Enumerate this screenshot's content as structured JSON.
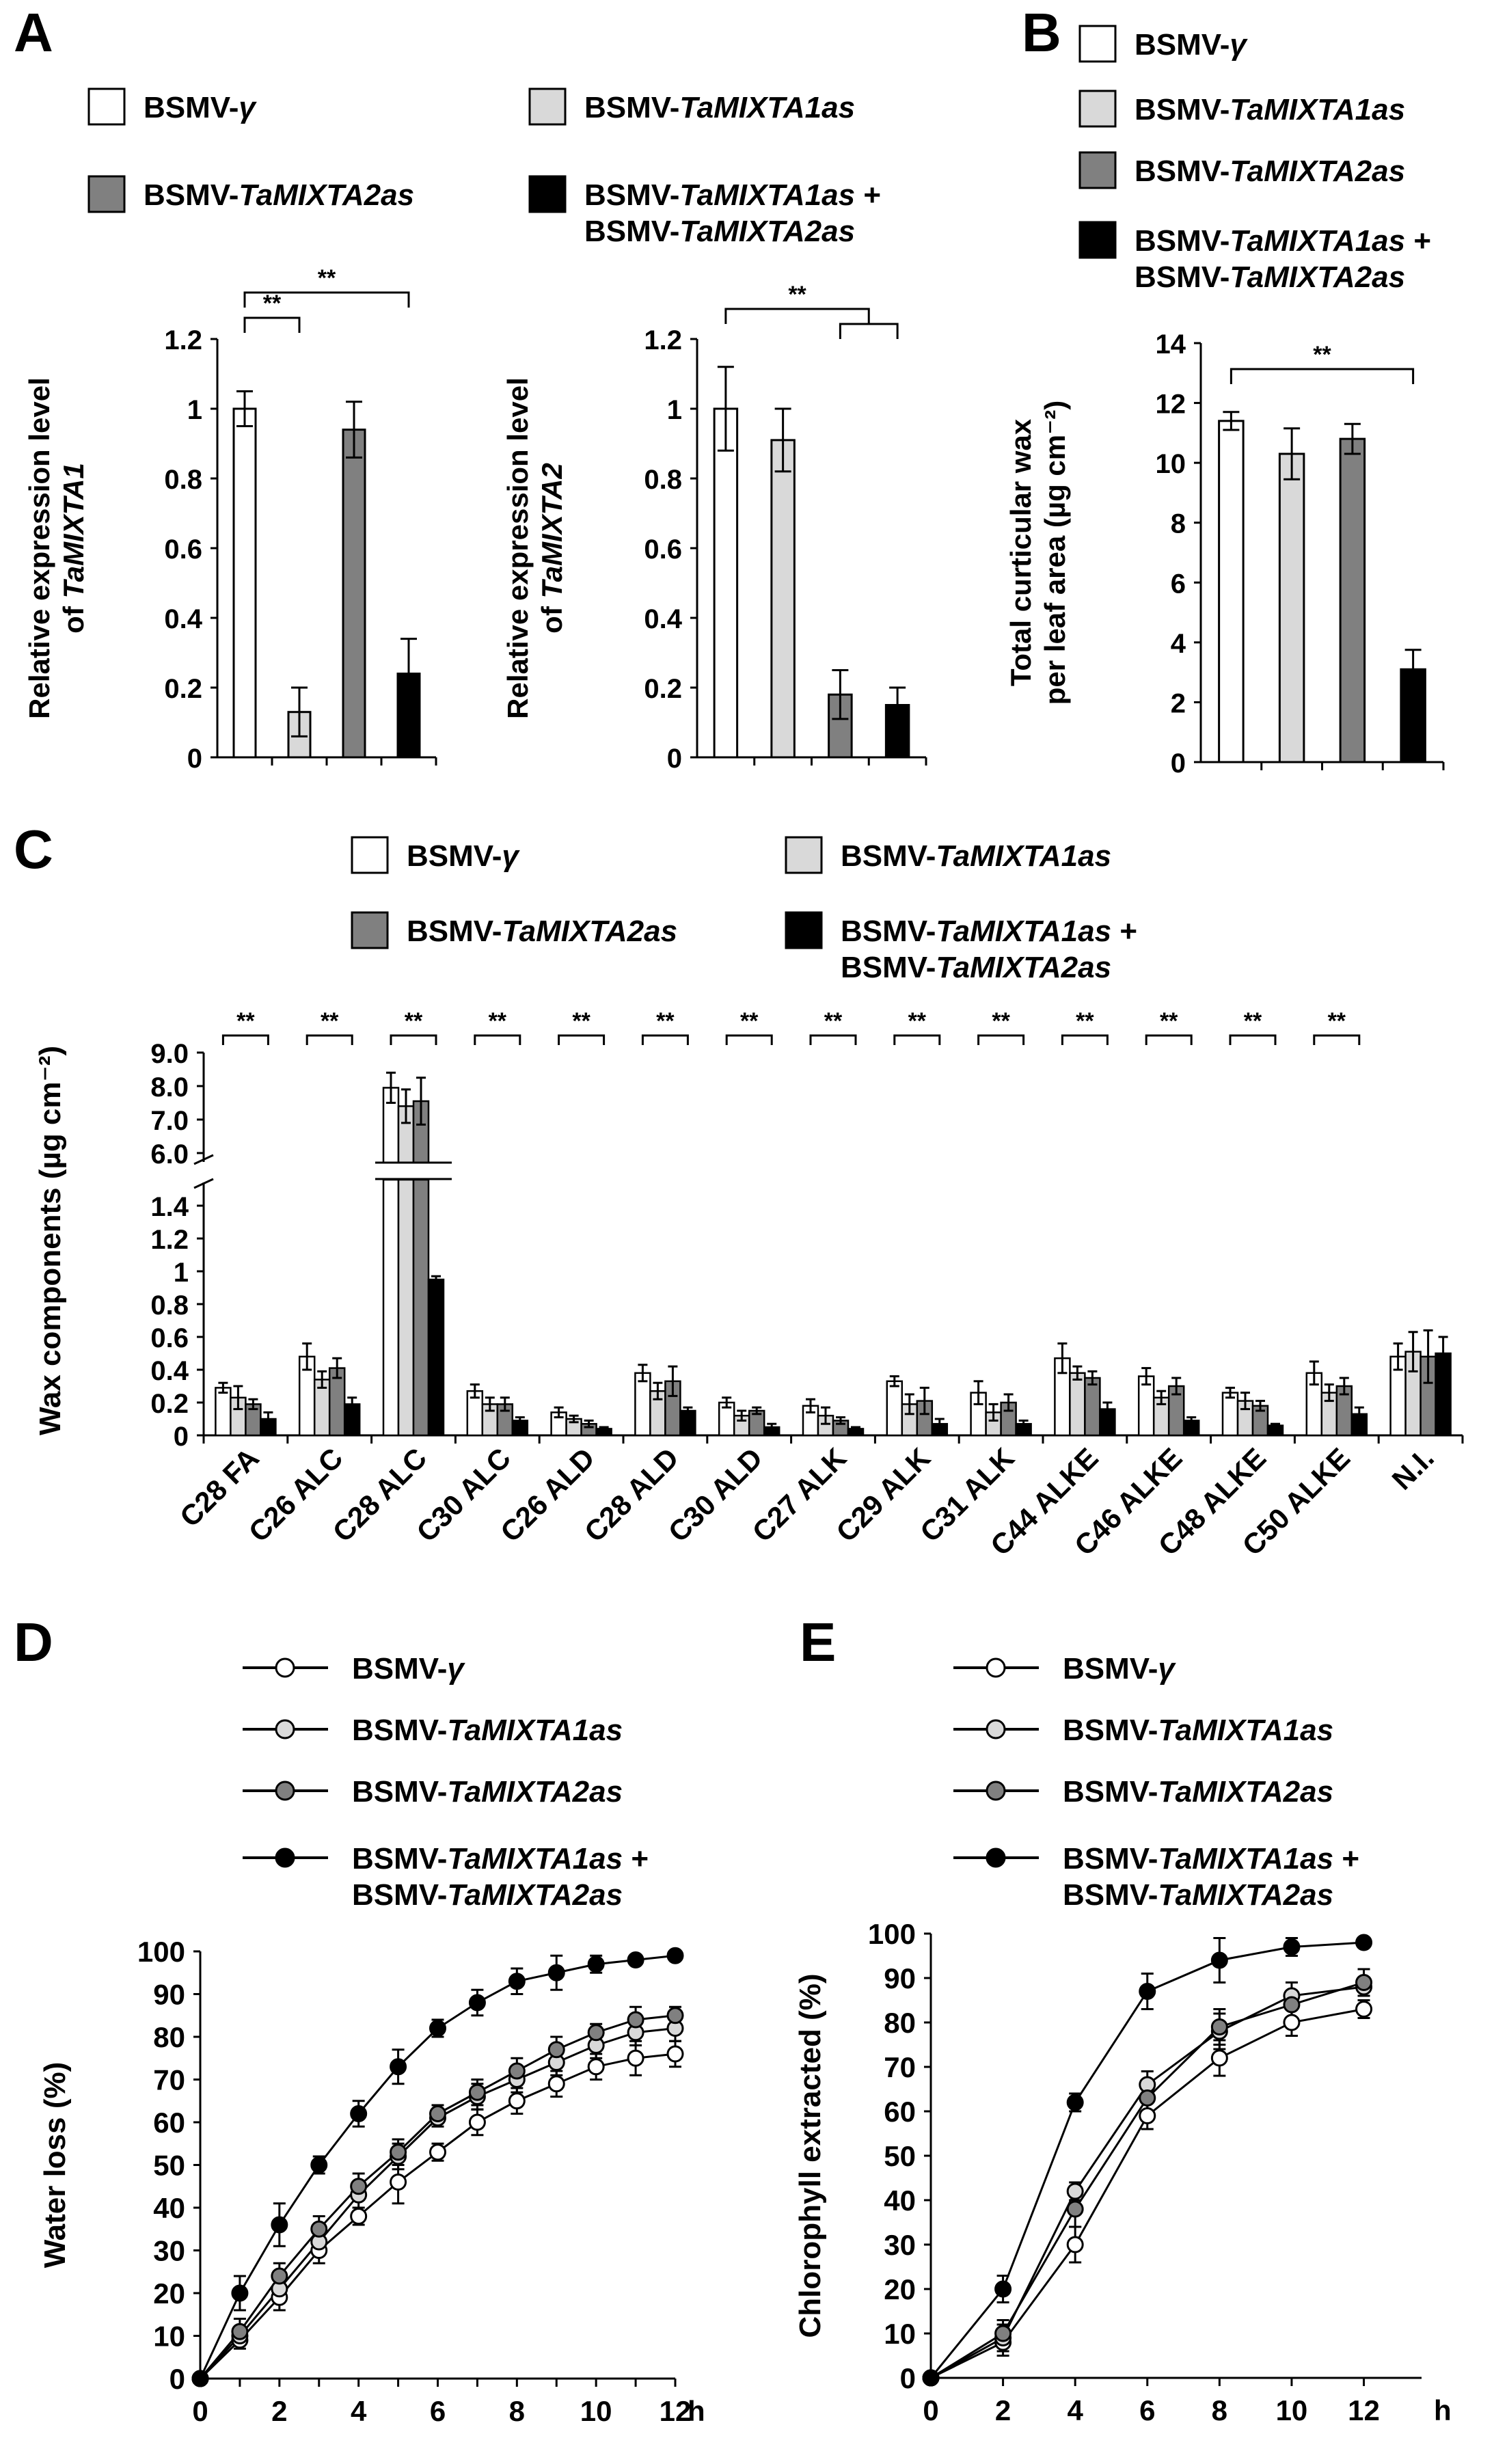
{
  "figure": {
    "panel_letters": [
      "A",
      "B",
      "C",
      "D",
      "E"
    ],
    "series_colors": [
      "#ffffff",
      "#d9d9d9",
      "#808080",
      "#000000"
    ],
    "legend_bar": [
      {
        "prefix": "BSMV-",
        "italic": "γ",
        "suffix": ""
      },
      {
        "prefix": "BSMV-",
        "italic": "TaMIXTA1as",
        "suffix": ""
      },
      {
        "prefix": "BSMV-",
        "italic": "TaMIXTA2as",
        "suffix": ""
      },
      {
        "prefix": "BSMV-",
        "italic": "TaMIXTA1as",
        "suffix": " +",
        "line2_prefix": "BSMV-",
        "line2_italic": "TaMIXTA2as"
      }
    ],
    "sig_marker": "**"
  },
  "chart_data": [
    {
      "panel": "A",
      "type": "bar",
      "ylabel_line1": "Relative expression level",
      "ylabel_line2_prefix": "of ",
      "ylabel_line2_italic": "TaMIXTA1",
      "ylim": [
        0,
        1.2
      ],
      "yticks": [
        "0",
        "0.2",
        "0.4",
        "0.6",
        "0.8",
        "1",
        "1.2"
      ],
      "values": [
        1.0,
        0.13,
        0.94,
        0.24
      ],
      "errors": [
        0.05,
        0.07,
        0.08,
        0.1
      ],
      "significance": [
        {
          "from": 0,
          "to": 1,
          "label": "**"
        },
        {
          "from": 0,
          "to": 3,
          "label": "**"
        }
      ]
    },
    {
      "panel": "A",
      "type": "bar",
      "ylabel_line1": "Relative expression level",
      "ylabel_line2_prefix": "of ",
      "ylabel_line2_italic": "TaMIXTA2",
      "ylim": [
        0,
        1.2
      ],
      "yticks": [
        "0",
        "0.2",
        "0.4",
        "0.6",
        "0.8",
        "1",
        "1.2"
      ],
      "values": [
        1.0,
        0.91,
        0.18,
        0.15
      ],
      "errors": [
        0.12,
        0.09,
        0.07,
        0.05
      ],
      "significance": [
        {
          "from": 0,
          "to": "2-3",
          "label": "**"
        }
      ]
    },
    {
      "panel": "B",
      "type": "bar",
      "ylabel_line1": "Total curticular wax",
      "ylabel_line2": "per leaf area  (µg cm⁻²)",
      "ylim": [
        0,
        14
      ],
      "yticks": [
        "0",
        "2",
        "4",
        "6",
        "8",
        "10",
        "12",
        "14"
      ],
      "values": [
        11.4,
        10.3,
        10.8,
        3.1
      ],
      "errors": [
        0.3,
        0.85,
        0.5,
        0.65
      ],
      "significance": [
        {
          "from": 0,
          "to": 3,
          "label": "**"
        }
      ]
    },
    {
      "panel": "C",
      "type": "bar",
      "ylabel": "Wax components (µg cm⁻²)",
      "yticks_lower": [
        "0",
        "0.2",
        "0.4",
        "0.6",
        "0.8",
        "1",
        "1.2",
        "1.4"
      ],
      "yticks_upper": [
        "6.0",
        "7.0",
        "8.0",
        "9.0"
      ],
      "axis_break": [
        1.5,
        6.0
      ],
      "categories": [
        "C28 FA",
        "C26 ALC",
        "C28 ALC",
        "C30 ALC",
        "C26 ALD",
        "C28 ALD",
        "C30 ALD",
        "C27 ALK",
        "C29 ALK",
        "C31 ALK",
        "C44 ALKE",
        "C46 ALKE",
        "C48 ALKE",
        "C50 ALKE",
        "N.I."
      ],
      "significance_all_except_last": "**",
      "series": [
        {
          "values": [
            0.29,
            0.48,
            7.95,
            0.27,
            0.14,
            0.38,
            0.2,
            0.18,
            0.33,
            0.26,
            0.47,
            0.36,
            0.26,
            0.38,
            0.48
          ],
          "errors": [
            0.03,
            0.08,
            0.45,
            0.04,
            0.03,
            0.05,
            0.03,
            0.04,
            0.03,
            0.07,
            0.09,
            0.05,
            0.03,
            0.07,
            0.08
          ]
        },
        {
          "values": [
            0.23,
            0.34,
            7.4,
            0.19,
            0.1,
            0.27,
            0.12,
            0.12,
            0.19,
            0.14,
            0.38,
            0.23,
            0.21,
            0.26,
            0.51
          ],
          "errors": [
            0.07,
            0.05,
            0.5,
            0.04,
            0.02,
            0.05,
            0.03,
            0.05,
            0.06,
            0.05,
            0.04,
            0.04,
            0.05,
            0.05,
            0.12
          ]
        },
        {
          "values": [
            0.19,
            0.41,
            7.55,
            0.19,
            0.07,
            0.33,
            0.15,
            0.09,
            0.21,
            0.2,
            0.35,
            0.3,
            0.18,
            0.3,
            0.48
          ],
          "errors": [
            0.03,
            0.06,
            0.7,
            0.04,
            0.02,
            0.09,
            0.02,
            0.02,
            0.08,
            0.05,
            0.04,
            0.05,
            0.03,
            0.05,
            0.16
          ]
        },
        {
          "values": [
            0.1,
            0.19,
            0.95,
            0.09,
            0.04,
            0.15,
            0.05,
            0.04,
            0.07,
            0.07,
            0.16,
            0.09,
            0.06,
            0.13,
            0.5
          ],
          "errors": [
            0.04,
            0.04,
            0.02,
            0.02,
            0.01,
            0.02,
            0.02,
            0.01,
            0.03,
            0.02,
            0.04,
            0.02,
            0.01,
            0.04,
            0.1
          ]
        }
      ]
    },
    {
      "panel": "D",
      "type": "line",
      "ylabel": "Water loss (%)",
      "x": [
        0,
        1,
        2,
        3,
        4,
        5,
        6,
        7,
        8,
        9,
        10,
        11,
        12
      ],
      "xticks": [
        "0",
        "2",
        "4",
        "6",
        "8",
        "10",
        "12"
      ],
      "x_unit": "h",
      "ylim": [
        0,
        100
      ],
      "yticks": [
        "0",
        "10",
        "20",
        "30",
        "40",
        "50",
        "60",
        "70",
        "80",
        "90",
        "100"
      ],
      "series": [
        {
          "values": [
            0,
            9,
            19,
            30,
            38,
            46,
            53,
            60,
            65,
            69,
            73,
            75,
            76
          ],
          "errors": [
            0,
            2,
            3,
            3,
            2,
            5,
            2,
            3,
            3,
            3,
            3,
            4,
            3
          ]
        },
        {
          "values": [
            0,
            10,
            21,
            32,
            43,
            52,
            61,
            66,
            70,
            74,
            78,
            81,
            82
          ],
          "errors": [
            0,
            2,
            3,
            3,
            3,
            3,
            2,
            3,
            3,
            3,
            3,
            3,
            3
          ]
        },
        {
          "values": [
            0,
            11,
            24,
            35,
            45,
            53,
            62,
            67,
            72,
            77,
            81,
            84,
            85
          ],
          "errors": [
            0,
            3,
            3,
            3,
            3,
            3,
            2,
            3,
            3,
            3,
            2,
            3,
            2
          ]
        },
        {
          "values": [
            0,
            20,
            36,
            50,
            62,
            73,
            82,
            88,
            93,
            95,
            97,
            98,
            99
          ],
          "errors": [
            0,
            4,
            5,
            2,
            3,
            4,
            2,
            3,
            3,
            4,
            2,
            1,
            1
          ]
        }
      ]
    },
    {
      "panel": "E",
      "type": "line",
      "ylabel": "Chlorophyll extracted (%)",
      "x": [
        0,
        2,
        4,
        6,
        8,
        10,
        12
      ],
      "xticks": [
        "0",
        "2",
        "4",
        "6",
        "8",
        "10",
        "12"
      ],
      "x_unit": "h",
      "ylim": [
        0,
        100
      ],
      "yticks": [
        "0",
        "10",
        "20",
        "30",
        "40",
        "50",
        "60",
        "70",
        "80",
        "90",
        "100"
      ],
      "series": [
        {
          "values": [
            0,
            8,
            30,
            59,
            72,
            80,
            83
          ],
          "errors": [
            0,
            3,
            4,
            3,
            4,
            3,
            2
          ]
        },
        {
          "values": [
            0,
            9,
            42,
            66,
            78,
            86,
            88
          ],
          "errors": [
            0,
            3,
            2,
            3,
            4,
            3,
            2
          ]
        },
        {
          "values": [
            0,
            10,
            38,
            63,
            79,
            84,
            89
          ],
          "errors": [
            0,
            3,
            4,
            3,
            4,
            3,
            3
          ]
        },
        {
          "values": [
            0,
            20,
            62,
            87,
            94,
            97,
            98
          ],
          "errors": [
            0,
            3,
            2,
            4,
            5,
            2,
            1
          ]
        }
      ]
    }
  ]
}
